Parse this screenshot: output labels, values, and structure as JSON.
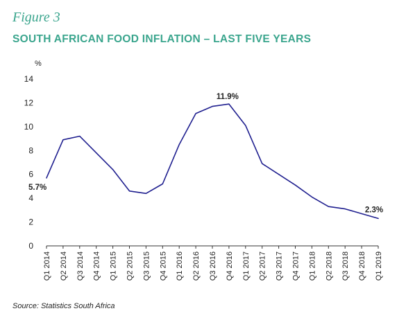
{
  "figure_label": "Figure 3",
  "title": "SOUTH AFRICAN FOOD INFLATION – LAST FIVE YEARS",
  "unit": "%",
  "source": "Source: Statistics South Africa",
  "colors": {
    "accent": "#3aa58d",
    "line": "#1f1f8f",
    "axis": "#333333"
  },
  "chart_data": {
    "type": "line",
    "title": "SOUTH AFRICAN FOOD INFLATION – LAST FIVE YEARS",
    "xlabel": "",
    "ylabel": "%",
    "ylim": [
      0,
      14
    ],
    "yticks": [
      0,
      2,
      4,
      6,
      8,
      10,
      12,
      14
    ],
    "grid": false,
    "categories": [
      "Q1 2014",
      "Q2 2014",
      "Q3 2014",
      "Q4 2014",
      "Q1 2015",
      "Q2 2015",
      "Q3 2015",
      "Q4 2015",
      "Q1 2016",
      "Q2 2016",
      "Q3 2016",
      "Q4 2016",
      "Q1 2017",
      "Q2 2017",
      "Q3 2017",
      "Q4 2017",
      "Q1 2018",
      "Q2 2018",
      "Q3 2018",
      "Q4 2018",
      "Q1 2019"
    ],
    "series": [
      {
        "values": [
          5.7,
          8.9,
          9.2,
          7.8,
          6.4,
          4.6,
          4.4,
          5.2,
          8.5,
          11.1,
          11.7,
          11.9,
          10.1,
          6.9,
          6.0,
          5.1,
          4.1,
          3.3,
          3.1,
          2.7,
          2.3
        ]
      }
    ],
    "annotations": [
      {
        "index": 0,
        "text": "5.7%"
      },
      {
        "index": 11,
        "text": "11.9%"
      },
      {
        "index": 20,
        "text": "2.3%"
      }
    ]
  }
}
